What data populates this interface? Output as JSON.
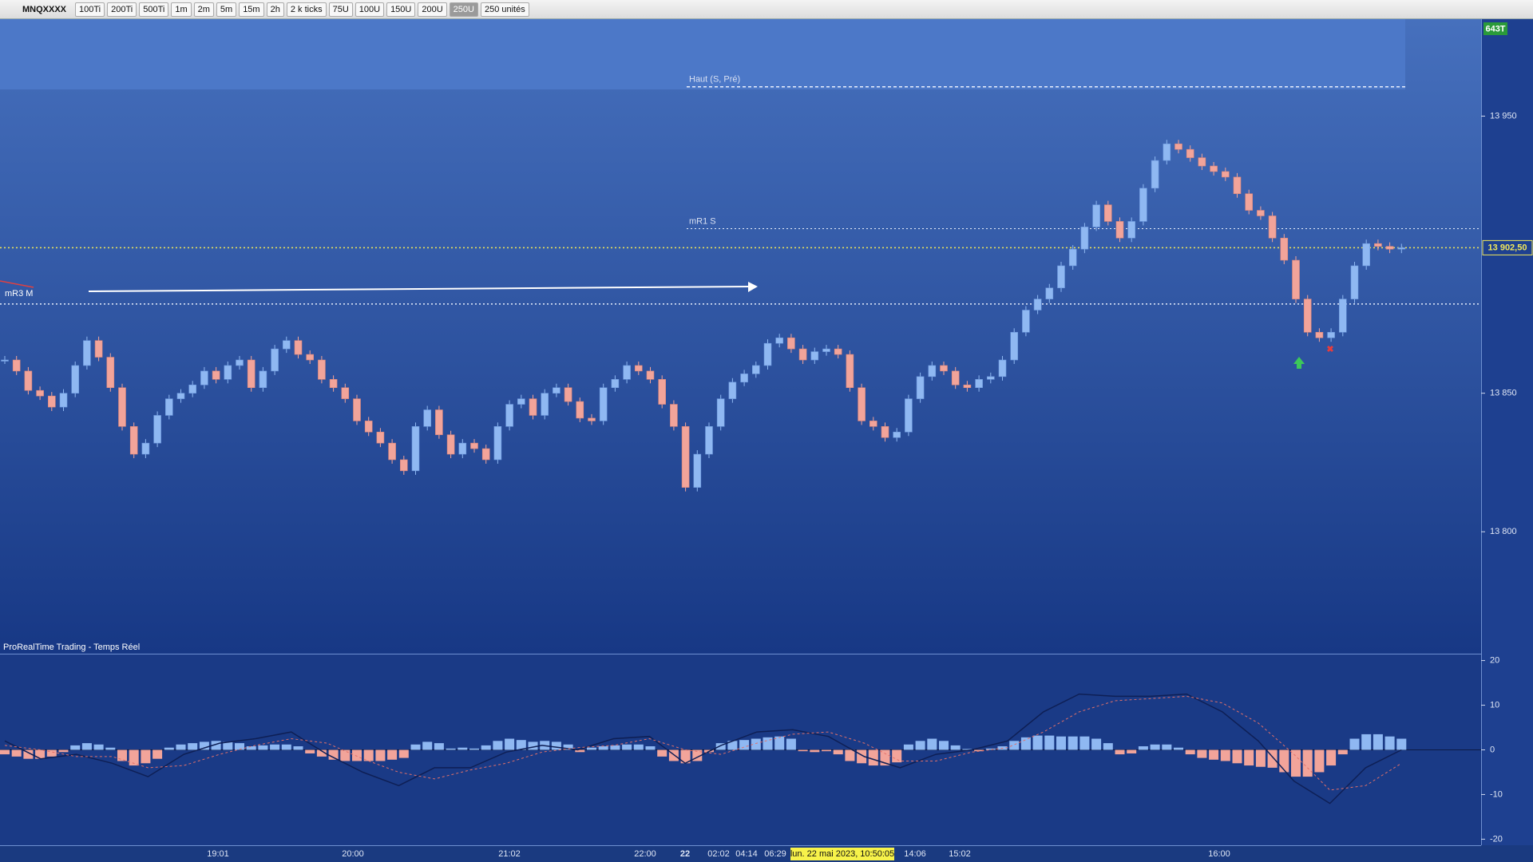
{
  "toolbar": {
    "symbol": "MNQXXXX",
    "buttons": [
      "100Ti",
      "200Ti",
      "500Ti",
      "1m",
      "2m",
      "5m",
      "15m",
      "2h",
      "2 k ticks",
      "75U",
      "100U",
      "150U",
      "200U",
      "250U",
      "250 unités"
    ],
    "badge": "643T"
  },
  "chart_data": [
    {
      "type": "candlestick",
      "source": "ProRealTime Trading - Temps Réel",
      "values": [
        13862,
        13858,
        13851,
        13849,
        13845,
        13850,
        13860,
        13869,
        13863,
        13852,
        13838,
        13828,
        13832,
        13842,
        13848,
        13850,
        13853,
        13858,
        13855,
        13860,
        13862,
        13852,
        13858,
        13866,
        13869,
        13864,
        13862,
        13855,
        13852,
        13848,
        13840,
        13836,
        13832,
        13826,
        13822,
        13838,
        13844,
        13835,
        13828,
        13832,
        13830,
        13826,
        13838,
        13846,
        13848,
        13842,
        13850,
        13852,
        13847,
        13841,
        13840,
        13852,
        13855,
        13860,
        13858,
        13855,
        13846,
        13838,
        13816,
        13828,
        13838,
        13848,
        13854,
        13857,
        13860,
        13868,
        13870,
        13866,
        13862,
        13865,
        13866,
        13864,
        13852,
        13840,
        13838,
        13834,
        13836,
        13848,
        13856,
        13860,
        13858,
        13853,
        13852,
        13855,
        13856,
        13862,
        13872,
        13880,
        13884,
        13888,
        13896,
        13902,
        13910,
        13918,
        13912,
        13906,
        13912,
        13924,
        13934,
        13940,
        13938,
        13935,
        13932,
        13930,
        13928,
        13922,
        13916,
        13914,
        13906,
        13898,
        13884,
        13872,
        13870,
        13872,
        13884,
        13896,
        13904,
        13903,
        13902,
        13902.5
      ],
      "up_color": "#8fb8f2",
      "down_color": "#f2a49a",
      "ylim": [
        13756,
        13985
      ],
      "yticks": [
        {
          "value": 13800,
          "label": "13 800"
        },
        {
          "value": 13850,
          "label": "13 850"
        },
        {
          "value": 13950,
          "label": "13 950"
        }
      ],
      "levels": [
        {
          "label": "Haut (S, Pré)",
          "value": 13960.6
        },
        {
          "label": "mR1 S",
          "value": 13909.4
        },
        {
          "label": "mR3 M",
          "value": 13882.2
        }
      ],
      "last_price": {
        "value": 13902.5,
        "label": "13 902,50"
      },
      "x_labels": [
        "19:01",
        "20:00",
        "21:02",
        "22:00",
        "22",
        "02:02",
        "04:14",
        "06:29",
        "lun. 22 mai 2023, 10:50:05",
        "14:06",
        "15:02",
        "16:00"
      ]
    },
    {
      "type": "macd",
      "ylim": [
        -21,
        21
      ],
      "yticks": [
        20,
        10,
        0,
        -10,
        -20
      ],
      "series": [
        {
          "type": "bar",
          "color": "#8fb8f2",
          "negative_color": "#f2a49a",
          "values": [
            -1,
            -1.5,
            -2,
            -2,
            -1.5,
            -0.5,
            1,
            1.5,
            1.2,
            0.5,
            -2.5,
            -3.5,
            -3,
            -2,
            0.5,
            1.2,
            1.5,
            1.8,
            2,
            1.8,
            1.5,
            0.8,
            1,
            1.2,
            1.2,
            0.8,
            -0.8,
            -1.5,
            -2.2,
            -2.5,
            -2.5,
            -2.5,
            -2.5,
            -2.2,
            -1.8,
            1.2,
            1.8,
            1.5,
            0.3,
            0.5,
            0.3,
            1,
            2,
            2.5,
            2.2,
            1.8,
            2,
            1.8,
            1.2,
            -0.5,
            0.5,
            0.8,
            1,
            1.2,
            1.2,
            0.8,
            -1.5,
            -2.5,
            -3,
            -2.5,
            -0.5,
            1.5,
            2,
            2.2,
            2.5,
            2.8,
            3,
            2.5,
            -0.3,
            -0.5,
            -0.3,
            -1,
            -2.5,
            -3,
            -3.5,
            -3.5,
            -2.8,
            1.2,
            2,
            2.5,
            2,
            1,
            0.2,
            -0.3,
            0.3,
            0.8,
            2,
            2.8,
            3.2,
            3.2,
            3,
            3,
            3,
            2.5,
            1.5,
            -1,
            -0.8,
            0.8,
            1.2,
            1.2,
            0.5,
            -1,
            -1.8,
            -2.2,
            -2.5,
            -3,
            -3.5,
            -3.8,
            -4,
            -5,
            -6,
            -6,
            -5,
            -3.5,
            -1,
            2.5,
            3.5,
            3.5,
            3,
            2.5
          ]
        },
        {
          "type": "line",
          "color": "#0e1f55",
          "values": [
            2,
            -2,
            -1,
            -3,
            -6,
            -1,
            1.5,
            2.5,
            4,
            -1,
            -5,
            -8,
            -4,
            -4,
            -0.5,
            1,
            0,
            2.5,
            3,
            -3,
            1,
            4,
            4.5,
            3,
            -1.5,
            -4,
            -1,
            0,
            2,
            8.5,
            12.5,
            12,
            12,
            12.5,
            8.5,
            2,
            -7,
            -12,
            -4,
            0
          ]
        },
        {
          "type": "line",
          "dashed": true,
          "color": "#e0706a",
          "values": [
            1,
            0,
            -1.5,
            -1.5,
            -4,
            -3.5,
            -1,
            1,
            2.5,
            1.5,
            -2,
            -5,
            -6.5,
            -4.5,
            -3,
            -0.5,
            0.5,
            1,
            2.5,
            0,
            -1,
            1.5,
            3.5,
            4,
            1.5,
            -2.5,
            -2.5,
            -0.5,
            0.5,
            4,
            8.5,
            11,
            11.5,
            12,
            10.5,
            6,
            -1,
            -9,
            -8,
            -3
          ]
        }
      ]
    }
  ]
}
